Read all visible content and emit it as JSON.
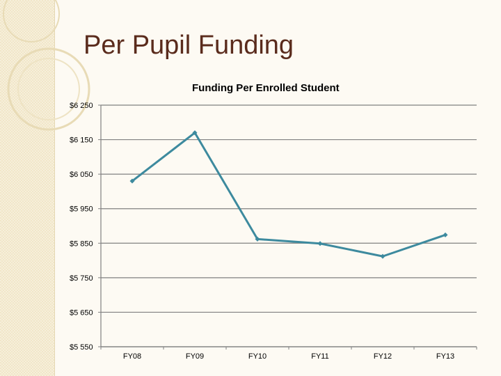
{
  "slide": {
    "title": "Per Pupil Funding"
  },
  "colors": {
    "title": "#5a2b1c",
    "line": "#3d8a9e",
    "grid": "#808080",
    "panel": "#f1e6c8",
    "deco_circle": "#e8dbb6"
  },
  "chart_data": {
    "type": "line",
    "title": "Funding Per Enrolled Student",
    "xlabel": "",
    "ylabel": "",
    "categories": [
      "FY08",
      "FY09",
      "FY10",
      "FY11",
      "FY12",
      "FY13"
    ],
    "series": [
      {
        "values": [
          6030,
          6170,
          5862,
          5849,
          5812,
          5874
        ]
      }
    ],
    "ylim": [
      5550,
      6250
    ],
    "yticks": [
      5550,
      5650,
      5750,
      5850,
      5950,
      6050,
      6150,
      6250
    ],
    "ytick_labels": [
      "$5 550",
      "$5 650",
      "$5 750",
      "$5 850",
      "$5 950",
      "$6 050",
      "$6 150",
      "$6 250"
    ],
    "grid": true,
    "legend": "none"
  }
}
